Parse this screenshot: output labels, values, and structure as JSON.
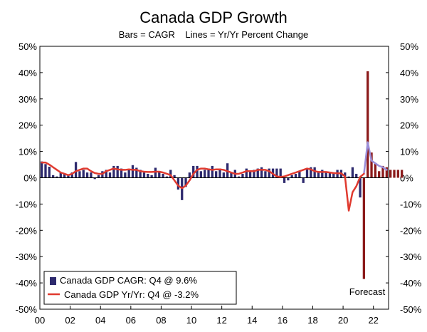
{
  "chart_data": {
    "type": "bar",
    "title": "Canada GDP Growth",
    "subtitle": "Bars = CAGR    Lines = Yr/Yr Percent Change",
    "xlabel": "",
    "ylabel": "",
    "ylim": [
      -50,
      50
    ],
    "yticks": [
      -50,
      -40,
      -30,
      -20,
      -10,
      0,
      10,
      20,
      30,
      40,
      50
    ],
    "ytick_labels": [
      "-50%",
      "-40%",
      "-30%",
      "-20%",
      "-10%",
      "0%",
      "10%",
      "20%",
      "30%",
      "40%",
      "50%"
    ],
    "xlim": [
      2000,
      2023
    ],
    "xticks": [
      2000,
      2002,
      2004,
      2006,
      2008,
      2010,
      2012,
      2014,
      2016,
      2018,
      2020,
      2022
    ],
    "xtick_labels": [
      "00",
      "02",
      "04",
      "06",
      "08",
      "10",
      "12",
      "14",
      "16",
      "18",
      "20",
      "22"
    ],
    "annotation": "Forecast",
    "forecast_start": 2021.25,
    "legend": {
      "position": "bottom-left",
      "items": [
        {
          "label": "Canada GDP CAGR: Q4 @ 9.6%",
          "color": "#2e2a6e",
          "type": "bar"
        },
        {
          "label": "Canada GDP Yr/Yr: Q4 @ -3.2%",
          "color": "#e03a2f",
          "type": "line"
        }
      ]
    },
    "colors": {
      "bar_actual": "#2e2a6e",
      "bar_forecast": "#8b1a1a",
      "line_actual": "#e03a2f",
      "line_forecast": "#9b8fd9"
    },
    "series": [
      {
        "name": "Canada GDP CAGR",
        "type": "bar",
        "x_start": 2000.0,
        "step": 0.25,
        "values": [
          6.2,
          5.2,
          4.2,
          1.0,
          0.5,
          2.0,
          1.5,
          0.8,
          2.0,
          6.0,
          2.5,
          3.0,
          2.0,
          2.0,
          -0.5,
          1.0,
          2.5,
          3.0,
          2.0,
          4.5,
          4.5,
          3.5,
          2.0,
          3.0,
          4.8,
          3.8,
          3.0,
          2.0,
          1.5,
          1.0,
          3.8,
          2.5,
          1.5,
          0.5,
          3.0,
          1.0,
          -4.5,
          -8.5,
          -3.5,
          2.0,
          4.5,
          4.5,
          2.5,
          3.0,
          3.5,
          4.5,
          2.5,
          3.5,
          2.0,
          5.5,
          2.0,
          3.0,
          0.5,
          1.5,
          3.5,
          2.5,
          3.0,
          3.5,
          4.0,
          2.5,
          3.5,
          3.5,
          3.5,
          3.5,
          -2.0,
          -1.0,
          1.0,
          1.5,
          2.5,
          -2.0,
          3.5,
          4.0,
          4.0,
          2.0,
          3.0,
          2.0,
          2.0,
          2.0,
          3.0,
          3.0,
          2.0,
          0.5,
          4.0,
          1.5,
          -7.5,
          -38.5,
          40.5,
          9.6,
          5.5,
          2.5,
          4.5,
          4.0,
          3.0,
          3.0,
          3.0,
          3.0
        ]
      },
      {
        "name": "Canada GDP Yr/Yr",
        "type": "line",
        "points": [
          [
            2000.0,
            5.8
          ],
          [
            2000.25,
            5.8
          ],
          [
            2000.5,
            5.0
          ],
          [
            2000.75,
            4.0
          ],
          [
            2001.0,
            3.0
          ],
          [
            2001.25,
            2.0
          ],
          [
            2001.5,
            1.5
          ],
          [
            2001.75,
            1.0
          ],
          [
            2002.0,
            1.5
          ],
          [
            2002.25,
            2.5
          ],
          [
            2002.5,
            3.0
          ],
          [
            2002.75,
            3.5
          ],
          [
            2003.0,
            3.5
          ],
          [
            2003.25,
            2.5
          ],
          [
            2003.5,
            1.8
          ],
          [
            2003.75,
            1.5
          ],
          [
            2004.0,
            1.5
          ],
          [
            2004.25,
            2.5
          ],
          [
            2004.5,
            3.0
          ],
          [
            2004.75,
            3.5
          ],
          [
            2005.0,
            3.2
          ],
          [
            2005.25,
            3.0
          ],
          [
            2005.5,
            3.0
          ],
          [
            2005.75,
            3.2
          ],
          [
            2006.0,
            3.0
          ],
          [
            2006.25,
            3.0
          ],
          [
            2006.5,
            2.5
          ],
          [
            2006.75,
            2.3
          ],
          [
            2007.0,
            2.2
          ],
          [
            2007.25,
            2.2
          ],
          [
            2007.5,
            2.3
          ],
          [
            2007.75,
            2.3
          ],
          [
            2008.0,
            2.0
          ],
          [
            2008.25,
            1.5
          ],
          [
            2008.5,
            1.0
          ],
          [
            2008.75,
            -1.0
          ],
          [
            2009.0,
            -3.0
          ],
          [
            2009.25,
            -4.0
          ],
          [
            2009.5,
            -3.0
          ],
          [
            2009.75,
            -1.0
          ],
          [
            2010.0,
            1.5
          ],
          [
            2010.25,
            3.0
          ],
          [
            2010.5,
            3.5
          ],
          [
            2010.75,
            3.5
          ],
          [
            2011.0,
            3.2
          ],
          [
            2011.25,
            3.0
          ],
          [
            2011.5,
            3.2
          ],
          [
            2011.75,
            3.2
          ],
          [
            2012.0,
            3.0
          ],
          [
            2012.25,
            2.5
          ],
          [
            2012.5,
            2.0
          ],
          [
            2012.75,
            1.5
          ],
          [
            2013.0,
            1.5
          ],
          [
            2013.25,
            2.0
          ],
          [
            2013.5,
            2.5
          ],
          [
            2013.75,
            2.5
          ],
          [
            2014.0,
            2.5
          ],
          [
            2014.25,
            3.0
          ],
          [
            2014.5,
            3.0
          ],
          [
            2014.75,
            3.0
          ],
          [
            2015.0,
            2.5
          ],
          [
            2015.25,
            1.5
          ],
          [
            2015.5,
            0.5
          ],
          [
            2015.75,
            0.3
          ],
          [
            2016.0,
            0.5
          ],
          [
            2016.25,
            1.0
          ],
          [
            2016.5,
            1.5
          ],
          [
            2016.75,
            2.0
          ],
          [
            2017.0,
            2.5
          ],
          [
            2017.25,
            3.0
          ],
          [
            2017.5,
            3.5
          ],
          [
            2017.75,
            3.2
          ],
          [
            2018.0,
            2.5
          ],
          [
            2018.25,
            2.2
          ],
          [
            2018.5,
            2.2
          ],
          [
            2018.75,
            2.2
          ],
          [
            2019.0,
            2.0
          ],
          [
            2019.25,
            1.8
          ],
          [
            2019.5,
            1.7
          ],
          [
            2019.75,
            1.7
          ],
          [
            2020.0,
            0.5
          ],
          [
            2020.25,
            -12.5
          ],
          [
            2020.5,
            -5.5
          ],
          [
            2020.75,
            -3.2
          ],
          [
            2021.0,
            0.3
          ],
          [
            2021.25,
            1.5
          ]
        ]
      },
      {
        "name": "Canada GDP Yr/Yr Forecast",
        "type": "line",
        "points": [
          [
            2021.25,
            1.5
          ],
          [
            2021.5,
            13.5
          ],
          [
            2021.75,
            6.5
          ],
          [
            2022.0,
            5.5
          ],
          [
            2022.25,
            4.5
          ],
          [
            2022.5,
            4.0
          ],
          [
            2022.75,
            3.0
          ]
        ]
      }
    ]
  }
}
